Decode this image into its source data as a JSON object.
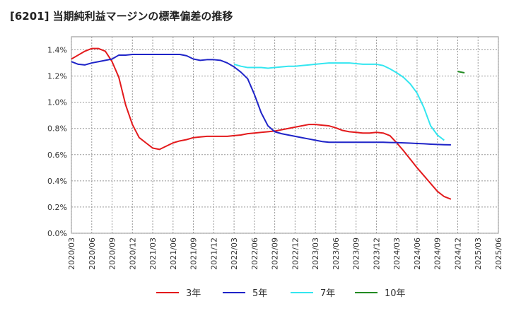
{
  "chart_data": {
    "type": "line",
    "title": "[6201]  当期純利益マージンの標準偏差の推移",
    "xlabel": "",
    "ylabel": "",
    "ylim": [
      0,
      1.5
    ],
    "y_ticks": [
      {
        "value": 0.0,
        "label": "0.0%"
      },
      {
        "value": 0.2,
        "label": "0.2%"
      },
      {
        "value": 0.4,
        "label": "0.4%"
      },
      {
        "value": 0.6,
        "label": "0.6%"
      },
      {
        "value": 0.8,
        "label": "0.8%"
      },
      {
        "value": 1.0,
        "label": "1.0%"
      },
      {
        "value": 1.2,
        "label": "1.2%"
      },
      {
        "value": 1.4,
        "label": "1.4%"
      }
    ],
    "x_ticks": [
      "2020/03",
      "2020/06",
      "2020/09",
      "2020/12",
      "2021/03",
      "2021/06",
      "2021/09",
      "2021/12",
      "2022/03",
      "2022/06",
      "2022/09",
      "2022/12",
      "2023/03",
      "2023/06",
      "2023/09",
      "2023/12",
      "2024/03",
      "2024/06",
      "2024/09",
      "2024/12",
      "2025/03",
      "2025/06"
    ],
    "grid": true,
    "legend_position": "bottom",
    "series": [
      {
        "name": "3年",
        "color": "#e31a1c",
        "start": "2020/03",
        "values": [
          1.33,
          1.36,
          1.39,
          1.41,
          1.41,
          1.39,
          1.31,
          1.19,
          0.98,
          0.83,
          0.73,
          0.69,
          0.65,
          0.64,
          0.665,
          0.69,
          0.705,
          0.715,
          0.73,
          0.735,
          0.74,
          0.74,
          0.74,
          0.74,
          0.745,
          0.75,
          0.76,
          0.765,
          0.77,
          0.775,
          0.78,
          0.79,
          0.8,
          0.81,
          0.82,
          0.83,
          0.83,
          0.825,
          0.82,
          0.805,
          0.785,
          0.775,
          0.77,
          0.765,
          0.765,
          0.77,
          0.765,
          0.745,
          0.69,
          0.63,
          0.565,
          0.5,
          0.44,
          0.38,
          0.32,
          0.28,
          0.26
        ]
      },
      {
        "name": "5年",
        "color": "#1f24c8",
        "start": "2020/03",
        "values": [
          1.31,
          1.29,
          1.285,
          1.3,
          1.31,
          1.32,
          1.33,
          1.36,
          1.36,
          1.365,
          1.365,
          1.365,
          1.365,
          1.365,
          1.365,
          1.365,
          1.365,
          1.355,
          1.33,
          1.32,
          1.325,
          1.325,
          1.32,
          1.3,
          1.27,
          1.23,
          1.18,
          1.06,
          0.92,
          0.82,
          0.775,
          0.76,
          0.75,
          0.74,
          0.73,
          0.72,
          0.71,
          0.7,
          0.695,
          0.695,
          0.695,
          0.695,
          0.695,
          0.695,
          0.695,
          0.695,
          0.695,
          0.693,
          0.692,
          0.69,
          0.688,
          0.685,
          0.683,
          0.68,
          0.678,
          0.676,
          0.675
        ]
      },
      {
        "name": "7年",
        "color": "#33e6f0",
        "start": "2022/03",
        "values": [
          1.29,
          1.275,
          1.265,
          1.265,
          1.265,
          1.26,
          1.265,
          1.27,
          1.275,
          1.275,
          1.28,
          1.285,
          1.29,
          1.295,
          1.3,
          1.3,
          1.3,
          1.3,
          1.295,
          1.29,
          1.29,
          1.29,
          1.28,
          1.255,
          1.225,
          1.19,
          1.14,
          1.07,
          0.96,
          0.82,
          0.75,
          0.71
        ]
      },
      {
        "name": "10年",
        "color": "#228b22",
        "start": "2024/12",
        "values": [
          1.235,
          1.225
        ]
      }
    ]
  }
}
